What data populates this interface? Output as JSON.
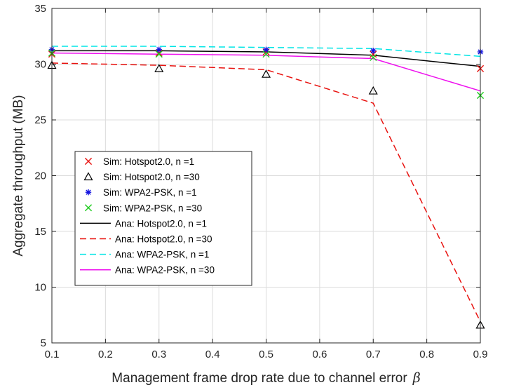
{
  "chart_data": {
    "type": "line",
    "xlabel": "Management frame drop rate due to channel error",
    "xlabel_symbol": "β",
    "ylabel": "Aggregate throughput (MB)",
    "xlim": [
      0.1,
      0.9
    ],
    "ylim": [
      5,
      35
    ],
    "x_ticks": [
      "0.1",
      "0.2",
      "0.3",
      "0.4",
      "0.5",
      "0.6",
      "0.7",
      "0.8",
      "0.9"
    ],
    "y_ticks": [
      "5",
      "10",
      "15",
      "20",
      "25",
      "30",
      "35"
    ],
    "grid": true,
    "legend_position": "center-left",
    "x": [
      0.1,
      0.3,
      0.5,
      0.7,
      0.9
    ],
    "series": [
      {
        "name": "Sim: Hotspot2.0, n =1",
        "kind": "marker",
        "marker": "x",
        "color": "#e8120f",
        "values": [
          30.9,
          31.0,
          31.1,
          30.9,
          29.6
        ]
      },
      {
        "name": "Sim: Hotspot2.0, n =30",
        "kind": "marker",
        "marker": "triangle",
        "color": "#000000",
        "values": [
          29.9,
          29.6,
          29.1,
          27.6,
          6.6
        ]
      },
      {
        "name": "Sim: WPA2-PSK, n =1",
        "kind": "marker",
        "marker": "asterisk",
        "color": "#1010e0",
        "values": [
          31.3,
          31.3,
          31.3,
          31.2,
          31.1
        ]
      },
      {
        "name": "Sim: WPA2-PSK, n =30",
        "kind": "marker",
        "marker": "x",
        "color": "#22cc22",
        "values": [
          31.0,
          30.9,
          30.9,
          30.6,
          27.2
        ]
      },
      {
        "name": "Ana: Hotspot2.0, n =1",
        "kind": "line",
        "dash": "solid",
        "color": "#000000",
        "values": [
          31.2,
          31.2,
          31.1,
          30.8,
          29.8
        ]
      },
      {
        "name": "Ana: Hotspot2.0, n =30",
        "kind": "line",
        "dash": "dashed",
        "color": "#e8120f",
        "values": [
          30.1,
          29.9,
          29.5,
          26.5,
          6.9
        ]
      },
      {
        "name": "Ana: WPA2-PSK, n =1",
        "kind": "line",
        "dash": "dashed",
        "color": "#00e5e5",
        "values": [
          31.6,
          31.6,
          31.5,
          31.4,
          30.7
        ]
      },
      {
        "name": "Ana: WPA2-PSK, n =30",
        "kind": "line",
        "dash": "solid",
        "color": "#ee11ee",
        "values": [
          31.0,
          30.9,
          30.8,
          30.5,
          27.6
        ]
      }
    ]
  }
}
